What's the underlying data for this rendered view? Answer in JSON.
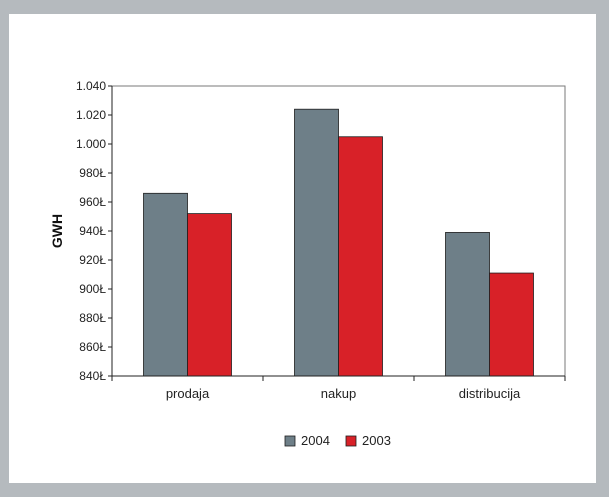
{
  "chart_data": {
    "type": "bar",
    "title": "",
    "xlabel": "",
    "ylabel": "GWH",
    "categories": [
      "prodaja",
      "nakup",
      "distribucija"
    ],
    "series": [
      {
        "name": "2004",
        "values": [
          966,
          1024,
          939
        ],
        "color": "#6e7f88"
      },
      {
        "name": "2003",
        "values": [
          952,
          1005,
          911
        ],
        "color": "#d82128"
      }
    ],
    "ylim": [
      840,
      1040
    ],
    "yticks": [
      840,
      860,
      880,
      900,
      920,
      940,
      960,
      980,
      1000,
      1020,
      1040
    ],
    "ytick_labels": [
      "840Ł",
      "860Ł",
      "880Ł",
      "900Ł",
      "920Ł",
      "940Ł",
      "960Ł",
      "980Ł",
      "1.000",
      "1.020",
      "1.040"
    ],
    "grid": false,
    "legend_position": "bottom"
  }
}
